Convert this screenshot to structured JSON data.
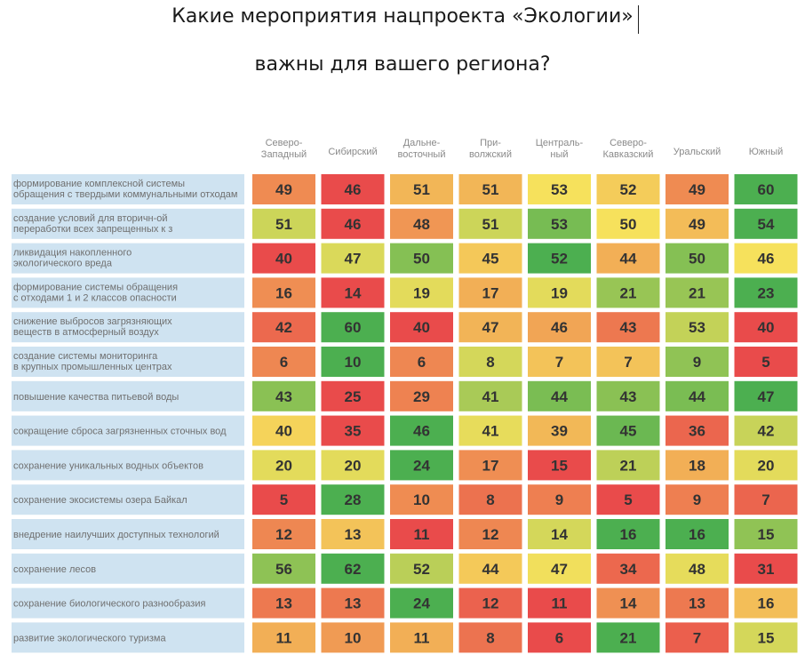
{
  "title": {
    "line1": "Какие мероприятия нацпроекта «Экологии»",
    "line2": "важны для вашего региона?"
  },
  "colors": {
    "row_label_bg": "#cfe3f1",
    "low": "#e94b4b",
    "mid": "#f6e15c",
    "high": "#4caf50"
  },
  "chart_data": {
    "type": "heatmap",
    "columns": [
      [
        "Северо-",
        "Западный"
      ],
      [
        "Сибирский"
      ],
      [
        "Дальне-",
        "восточный"
      ],
      [
        "При-",
        "волжский"
      ],
      [
        "Централь-",
        "ный"
      ],
      [
        "Северо-",
        "Кавказский"
      ],
      [
        "Уральский"
      ],
      [
        "Южный"
      ]
    ],
    "rows": [
      [
        "формирование комплексной системы",
        "обращения с твердыми коммунальными отходам"
      ],
      [
        "создание условий для вторичн-ой",
        "переработки всех запрещенных к з"
      ],
      [
        "ликвидация накопленного",
        "экологического вреда"
      ],
      [
        "формирование системы обращения",
        "с отходами 1 и 2 классов опасности"
      ],
      [
        "снижение выбросов загрязняющих",
        "веществ в атмосферный воздух"
      ],
      [
        "создание системы мониторинга",
        "в крупных промышленных центрах"
      ],
      [
        "повышение качества питьевой воды"
      ],
      [
        "сокращение сброса загрязненных сточных вод"
      ],
      [
        "сохранение уникальных водных объектов"
      ],
      [
        "сохранение экосистемы озера Байкал"
      ],
      [
        "внедрение наилучших доступных технологий"
      ],
      [
        "сохранение лесов"
      ],
      [
        "сохранение биологического разнообразия"
      ],
      [
        "развитие экологического туризма"
      ]
    ],
    "values": [
      [
        49,
        46,
        51,
        51,
        53,
        52,
        49,
        60
      ],
      [
        51,
        46,
        48,
        51,
        53,
        50,
        49,
        54
      ],
      [
        40,
        47,
        50,
        45,
        52,
        44,
        50,
        46
      ],
      [
        16,
        14,
        19,
        17,
        19,
        21,
        21,
        23
      ],
      [
        42,
        60,
        40,
        47,
        46,
        43,
        53,
        40
      ],
      [
        6,
        10,
        6,
        8,
        7,
        7,
        9,
        5
      ],
      [
        43,
        25,
        29,
        41,
        44,
        43,
        44,
        47
      ],
      [
        40,
        35,
        46,
        41,
        39,
        45,
        36,
        42
      ],
      [
        20,
        20,
        24,
        17,
        15,
        21,
        18,
        20
      ],
      [
        5,
        28,
        10,
        8,
        9,
        5,
        9,
        7
      ],
      [
        12,
        13,
        11,
        12,
        14,
        16,
        16,
        15
      ],
      [
        56,
        62,
        52,
        44,
        47,
        34,
        48,
        31
      ],
      [
        13,
        13,
        24,
        12,
        11,
        14,
        13,
        16
      ],
      [
        11,
        10,
        11,
        8,
        6,
        21,
        7,
        15
      ]
    ]
  }
}
